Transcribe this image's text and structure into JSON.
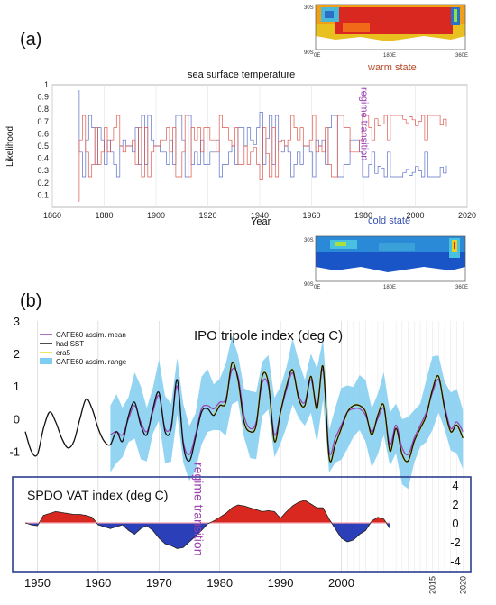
{
  "panel_a_label": "(a)",
  "panel_b_label": "(b)",
  "colors": {
    "red": "#d9473a",
    "blue": "#4a5fc2",
    "purple": "#9b3fb0",
    "band": "#7fcdf0",
    "map_warm": "#d8281f",
    "map_cold": "#1a55c8",
    "box": "#2b3f8f"
  },
  "maps": {
    "top": {
      "label": "warm state",
      "lat_ticks": [
        "30S",
        "90S"
      ],
      "lon_ticks": [
        "0E",
        "180E",
        "360E"
      ]
    },
    "bottom": {
      "label": "cold state",
      "lat_ticks": [
        "30S",
        "90S"
      ],
      "lon_ticks": [
        "0E",
        "180E",
        "360E"
      ]
    }
  },
  "chart_data": [
    {
      "type": "line",
      "title": "sea surface temperature",
      "xlabel": "Year",
      "ylabel": "Likelihood",
      "xlim": [
        1860,
        2020
      ],
      "ylim": [
        0,
        1
      ],
      "xticks": [
        "1860",
        "1880",
        "1900",
        "1920",
        "1940",
        "1960",
        "1980",
        "2000",
        "2020"
      ],
      "yticks": [
        "0.1",
        "0.2",
        "0.3",
        "0.4",
        "0.5",
        "0.6",
        "0.7",
        "0.8",
        "0.9",
        "1"
      ],
      "annotation": "regime transition",
      "annotation_x": 1977,
      "series": [
        {
          "name": "warm state",
          "color": "#d9473a",
          "x_start": 1870,
          "x_end": 2013
        },
        {
          "name": "cold state",
          "color": "#4a5fc2",
          "x_start": 1870,
          "x_end": 2013
        }
      ]
    },
    {
      "type": "line",
      "title": "IPO tripole index (deg C)",
      "xlim": [
        1948,
        2021
      ],
      "ylim": [
        -1.6,
        3
      ],
      "xticks": [
        "1950",
        "1960",
        "1970",
        "1980",
        "1990",
        "2000"
      ],
      "xticks_rotated": [
        "2015",
        "2020"
      ],
      "yticks": [
        "-1",
        "0",
        "1",
        "2",
        "3"
      ],
      "legend": [
        {
          "name": "CAFE60 assim. mean",
          "color": "#9b3fb0"
        },
        {
          "name": "hadISST",
          "color": "#111111"
        },
        {
          "name": "era5",
          "color": "#e3e02a"
        },
        {
          "name": "CAFE60 assim. range",
          "color": "#7fcdf0"
        }
      ],
      "annotation": "regime transition",
      "annotation_x": 1977,
      "hadisst": {
        "x": [
          1948,
          1949,
          1950,
          1951,
          1952,
          1953,
          1954,
          1955,
          1956,
          1957,
          1958,
          1959,
          1960,
          1961,
          1962,
          1963,
          1964,
          1965,
          1966,
          1967,
          1968,
          1969,
          1970,
          1971,
          1972,
          1973,
          1974,
          1975,
          1976,
          1977,
          1978,
          1979,
          1980,
          1981,
          1982,
          1983,
          1984,
          1985,
          1986,
          1987,
          1988,
          1989,
          1990,
          1991,
          1992,
          1993,
          1994,
          1995,
          1996,
          1997,
          1998,
          1999,
          2000,
          2001,
          2002,
          2003,
          2004,
          2005,
          2006,
          2007,
          2008,
          2009,
          2010,
          2011,
          2012,
          2013,
          2014,
          2015,
          2016,
          2017,
          2018,
          2019,
          2020
        ],
        "y": [
          -0.4,
          -1.0,
          -1.1,
          -0.3,
          0.2,
          -0.1,
          -0.6,
          -0.9,
          -0.7,
          0.0,
          0.6,
          0.3,
          -0.3,
          -0.7,
          -0.8,
          -0.4,
          -0.7,
          0.1,
          0.5,
          -0.2,
          -0.5,
          0.3,
          0.8,
          -0.4,
          -0.3,
          1.2,
          -0.8,
          -1.3,
          -0.6,
          0.2,
          0.3,
          0.1,
          0.4,
          0.5,
          1.7,
          1.2,
          -0.1,
          -0.4,
          -0.2,
          1.3,
          1.1,
          -0.7,
          0.2,
          1.0,
          1.5,
          0.6,
          0.4,
          1.3,
          0.3,
          1.6,
          -1.2,
          -0.8,
          -0.3,
          0.2,
          0.4,
          0.4,
          0.2,
          -0.5,
          0.1,
          0.4,
          -1.0,
          -0.3,
          -1.1,
          -1.3,
          -0.7,
          -0.3,
          0.1,
          0.9,
          1.3,
          0.3,
          -0.4,
          -0.2,
          -0.6
        ]
      },
      "cafe60_mean": {
        "x": [
          1962,
          1963,
          1964,
          1965,
          1966,
          1967,
          1968,
          1969,
          1970,
          1971,
          1972,
          1973,
          1974,
          1975,
          1976,
          1977,
          1978,
          1979,
          1980,
          1981,
          1982,
          1983,
          1984,
          1985,
          1986,
          1987,
          1988,
          1989,
          1990,
          1991,
          1992,
          1993,
          1994,
          1995,
          1996,
          1997,
          1998,
          1999,
          2000,
          2001,
          2002,
          2003,
          2004,
          2005,
          2006,
          2007,
          2008,
          2009,
          2010,
          2011,
          2012,
          2013,
          2014,
          2015,
          2016,
          2017,
          2018,
          2019,
          2020
        ],
        "y": [
          -0.5,
          -0.4,
          -0.5,
          0.0,
          0.4,
          -0.1,
          -0.4,
          0.2,
          0.7,
          -0.3,
          -0.2,
          1.0,
          -0.7,
          -1.1,
          -0.5,
          0.3,
          0.4,
          0.3,
          0.5,
          0.6,
          1.5,
          1.3,
          0.1,
          -0.3,
          -0.1,
          1.1,
          1.0,
          -0.5,
          0.2,
          0.9,
          1.4,
          0.7,
          0.5,
          1.2,
          0.4,
          1.5,
          -1.0,
          -0.6,
          -0.2,
          0.2,
          0.3,
          0.3,
          0.1,
          -0.4,
          0.0,
          0.3,
          -0.8,
          -0.2,
          -0.9,
          -1.1,
          -0.6,
          -0.2,
          0.2,
          0.8,
          1.2,
          0.4,
          -0.3,
          -0.1,
          -0.4
        ]
      },
      "era5": {
        "x": [
          1979,
          1980,
          1981,
          1982,
          1983,
          1984,
          1985,
          1986,
          1987,
          1988,
          1989,
          1990,
          1991,
          1992,
          1993,
          1994,
          1995,
          1996,
          1997,
          1998,
          1999,
          2000,
          2001,
          2002,
          2003,
          2004,
          2005,
          2006,
          2007,
          2008,
          2009,
          2010,
          2011,
          2012,
          2013,
          2014,
          2015,
          2016,
          2017,
          2018,
          2019,
          2020
        ],
        "y": [
          0.1,
          0.4,
          0.5,
          1.7,
          1.2,
          -0.1,
          -0.4,
          -0.2,
          1.3,
          1.1,
          -0.7,
          0.2,
          1.0,
          1.5,
          0.6,
          0.4,
          1.3,
          0.3,
          1.6,
          -1.2,
          -0.8,
          -0.3,
          0.2,
          0.4,
          0.4,
          0.2,
          -0.5,
          0.1,
          0.4,
          -1.0,
          -0.3,
          -1.1,
          -1.3,
          -0.7,
          -0.3,
          0.1,
          0.9,
          1.3,
          0.3,
          -0.4,
          -0.2,
          -0.6
        ]
      },
      "range_x_start": 1962,
      "range_x_end": 2020,
      "range_halfwidth": 0.9
    },
    {
      "type": "area",
      "title": "SPDO VAT index (deg C)",
      "xlim": [
        1948,
        2021
      ],
      "ylim": [
        -4.5,
        5
      ],
      "yticks": [
        "4",
        "2",
        "0",
        "-2",
        "-4"
      ],
      "x": [
        1948,
        1949,
        1950,
        1951,
        1952,
        1953,
        1954,
        1955,
        1956,
        1957,
        1958,
        1959,
        1960,
        1961,
        1962,
        1963,
        1964,
        1965,
        1966,
        1967,
        1968,
        1969,
        1970,
        1971,
        1972,
        1973,
        1974,
        1975,
        1976,
        1977,
        1978,
        1979,
        1980,
        1981,
        1982,
        1983,
        1984,
        1985,
        1986,
        1987,
        1988,
        1989,
        1990,
        1991,
        1992,
        1993,
        1994,
        1995,
        1996,
        1997,
        1998,
        1999,
        2000,
        2001,
        2002,
        2003,
        2004,
        2005,
        2006,
        2007,
        2008
      ],
      "y": [
        0.0,
        -0.2,
        -0.3,
        0.8,
        1.0,
        1.2,
        1.1,
        1.0,
        0.9,
        0.9,
        0.8,
        0.6,
        -0.2,
        -0.4,
        -0.6,
        -0.4,
        -0.2,
        -0.8,
        -1.2,
        -0.6,
        -0.3,
        -0.8,
        -1.6,
        -2.2,
        -2.4,
        -2.7,
        -2.6,
        -2.0,
        -1.4,
        -0.8,
        -0.1,
        0.2,
        0.6,
        1.0,
        1.6,
        1.9,
        1.8,
        1.6,
        1.4,
        1.2,
        1.3,
        1.2,
        0.5,
        1.2,
        1.8,
        2.2,
        2.4,
        2.0,
        1.6,
        1.6,
        0.4,
        -0.6,
        -1.6,
        -2.0,
        -1.8,
        -1.2,
        -0.8,
        0.2,
        0.6,
        0.4,
        -0.6
      ]
    }
  ]
}
